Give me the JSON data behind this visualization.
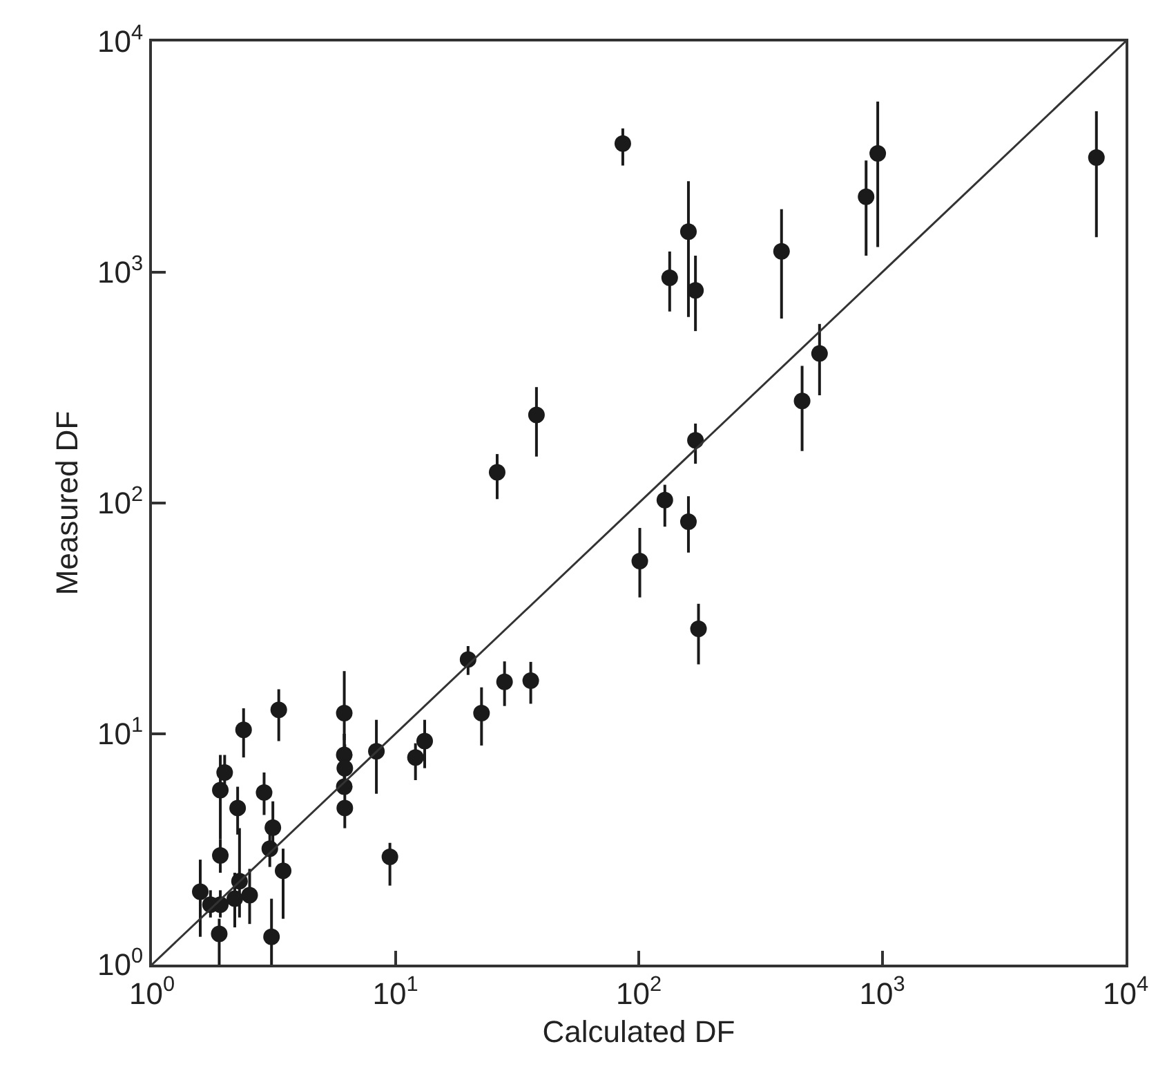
{
  "chart_data": {
    "type": "scatter",
    "xlabel": "Calculated DF",
    "ylabel": "Measured DF",
    "log": "xy",
    "grid": false,
    "marker": "circle",
    "xlim": [
      1,
      10000
    ],
    "ylim": [
      1,
      10000
    ],
    "xticks": [
      {
        "value": 1,
        "label": "10$^{0}$"
      },
      {
        "value": 10,
        "label": "10$^{1}$"
      },
      {
        "value": 100,
        "label": "10$^{2}$"
      },
      {
        "value": 1000,
        "label": "10$^{3}$"
      },
      {
        "value": 10000,
        "label": "10$^{4}$"
      }
    ],
    "yticks": [
      {
        "value": 1,
        "label": "10$^{0}$"
      },
      {
        "value": 10,
        "label": "10$^{1}$"
      },
      {
        "value": 100,
        "label": "10$^{2}$"
      },
      {
        "value": 1000,
        "label": "10$^{3}$"
      },
      {
        "value": 10000,
        "label": "10$^{4}$"
      }
    ],
    "series": [
      {
        "type": "scatter",
        "color": "#1a1a1a",
        "x": [
          1.58,
          1.74,
          1.91,
          1.89,
          1.91,
          1.91,
          1.99,
          2.25,
          2.38,
          2.29,
          2.52,
          2.19,
          2.89,
          3.32,
          3.14,
          3.05,
          3.46,
          3.1,
          6.17,
          6.17,
          6.2,
          6.17,
          6.2,
          8.36,
          9.5,
          12.1,
          13.2,
          19.9,
          22.6,
          28.1,
          36,
          38,
          26.2,
          171,
          128,
          160,
          101,
          176,
          86,
          160,
          134,
          171,
          386,
          859,
          959,
          7590,
          553,
          469
        ],
        "values": [
          2.07,
          1.82,
          1.82,
          1.36,
          2.97,
          5.7,
          6.8,
          4.77,
          10.4,
          2.3,
          2.0,
          1.93,
          5.57,
          12.7,
          3.92,
          3.18,
          2.55,
          1.32,
          12.3,
          8.1,
          7.1,
          5.9,
          4.77,
          8.4,
          2.93,
          7.9,
          9.3,
          21,
          12.3,
          16.8,
          17,
          241,
          136,
          187,
          103,
          83,
          56,
          28.5,
          3610,
          1500,
          946,
          834,
          1232,
          2125,
          3275,
          3140,
          445,
          277
        ],
        "errors": [
          [
            1.32,
            2.85
          ],
          [
            1.6,
            2.1
          ],
          [
            1.6,
            2.1
          ],
          [
            1,
            1.58
          ],
          [
            2.5,
            3.5
          ],
          [
            3.5,
            8.1
          ],
          [
            5.5,
            8.1
          ],
          [
            3.66,
            5.9
          ],
          [
            7.9,
            12.9
          ],
          [
            1.6,
            3.9
          ],
          [
            1.5,
            2.6
          ],
          [
            1.45,
            2.5
          ],
          [
            4.45,
            6.8
          ],
          [
            9.3,
            15.6
          ],
          [
            3.18,
            5.1
          ],
          [
            2.65,
            3.66
          ],
          [
            1.58,
            3.18
          ],
          [
            1,
            1.93
          ],
          [
            9.4,
            18.7
          ],
          [
            6.5,
            10
          ],
          [
            5.5,
            9
          ],
          [
            5.9,
            10
          ],
          [
            3.9,
            5.5
          ],
          [
            5.5,
            11.5
          ],
          [
            2.2,
            3.37
          ],
          [
            6.3,
            9.1
          ],
          [
            7.1,
            11.5
          ],
          [
            18,
            24
          ],
          [
            8.9,
            15.9
          ],
          [
            13.2,
            20.6
          ],
          [
            13.5,
            20.5
          ],
          [
            159,
            318
          ],
          [
            104,
            163
          ],
          [
            148,
            221
          ],
          [
            79,
            120
          ],
          [
            61,
            107
          ],
          [
            39,
            78
          ],
          [
            20,
            36.6
          ],
          [
            2900,
            4200
          ],
          [
            640,
            2480
          ],
          [
            676,
            1230
          ],
          [
            556,
            1180
          ],
          [
            630,
            1875
          ],
          [
            1180,
            3050
          ],
          [
            1285,
            5490
          ],
          [
            1420,
            4980
          ],
          [
            293,
            597
          ],
          [
            168,
            393
          ]
        ]
      },
      {
        "type": "line",
        "marker": "none",
        "color": "#333333",
        "x": [
          1,
          10000
        ],
        "values": [
          1,
          10000
        ]
      }
    ]
  }
}
